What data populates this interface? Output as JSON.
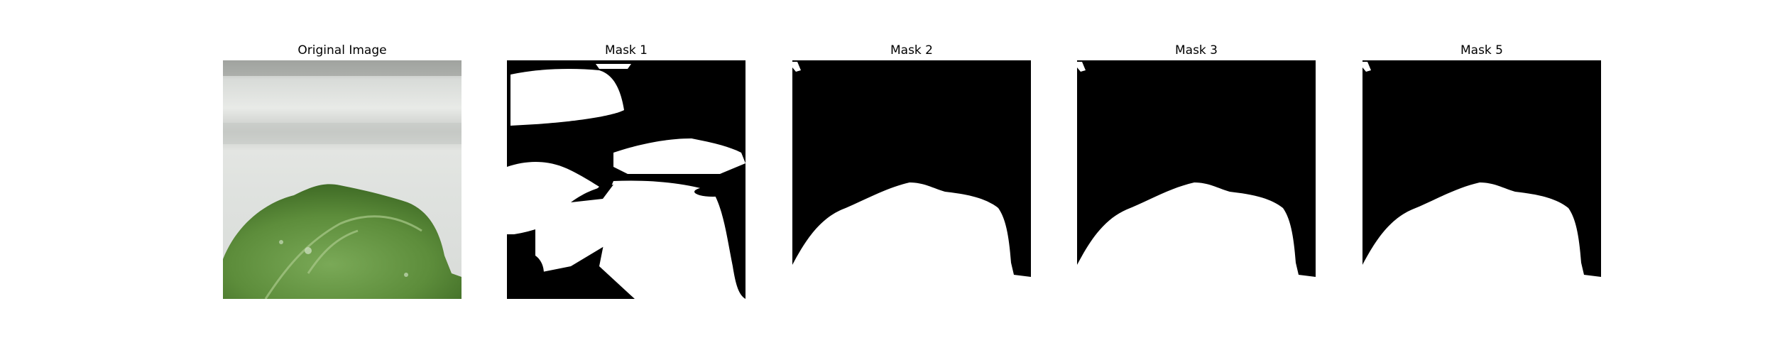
{
  "panels": [
    {
      "title": "Original Image",
      "kind": "photo"
    },
    {
      "title": "Mask 1",
      "kind": "mask"
    },
    {
      "title": "Mask 2",
      "kind": "mask"
    },
    {
      "title": "Mask 3",
      "kind": "mask"
    },
    {
      "title": "Mask 5",
      "kind": "mask"
    }
  ],
  "colors": {
    "background": "#ffffff",
    "mask_fg": "#ffffff",
    "mask_bg": "#000000",
    "leaf": "#5f8f3e",
    "wall": "#d9dcd9"
  }
}
